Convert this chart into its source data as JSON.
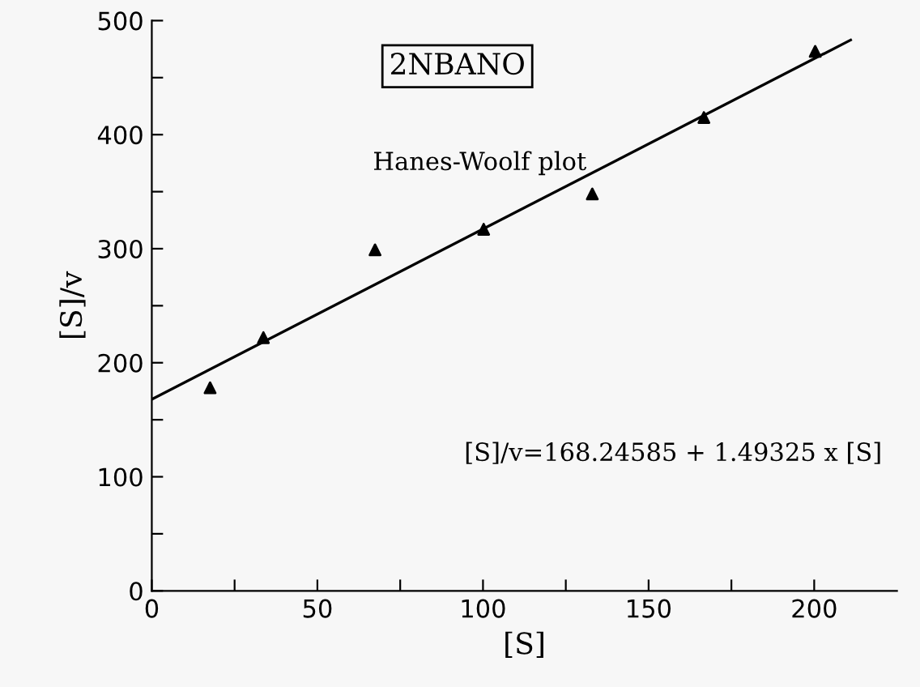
{
  "chart_data": {
    "type": "scatter",
    "xlabel": "[S]",
    "ylabel": "[S]/v",
    "annotations": [
      "2NBANO",
      "Hanes-Woolf plot",
      "[S]/v=168.24585 + 1.49325 x [S]"
    ],
    "x": [
      17.6,
      33.7,
      67.4,
      100.2,
      133,
      166.7,
      200.3
    ],
    "series": [
      {
        "color": "#000000",
        "marker": "triangle",
        "values": [
          178,
          222,
          299,
          317,
          348,
          415,
          473
        ]
      },
      {
        "type": "line",
        "color": "#000000",
        "marker": "none",
        "line_style": "solid",
        "x": [
          0,
          211
        ],
        "values": [
          168,
          483
        ]
      }
    ],
    "xlim": [
      0,
      225
    ],
    "ylim": [
      0,
      500
    ],
    "xticks": [
      0,
      {
        "value": 25,
        "label": null
      },
      50,
      {
        "value": 75,
        "label": null
      },
      100,
      {
        "value": 125,
        "label": null
      },
      150,
      {
        "value": 175,
        "label": null
      },
      200
    ],
    "yticks": [
      0,
      {
        "value": 50,
        "label": null
      },
      100,
      {
        "value": 150,
        "label": null
      },
      200,
      {
        "value": 250,
        "label": null
      },
      300,
      {
        "value": 350,
        "label": null
      },
      400,
      {
        "value": 450,
        "label": null
      },
      500
    ],
    "grid": false,
    "legend": false
  }
}
